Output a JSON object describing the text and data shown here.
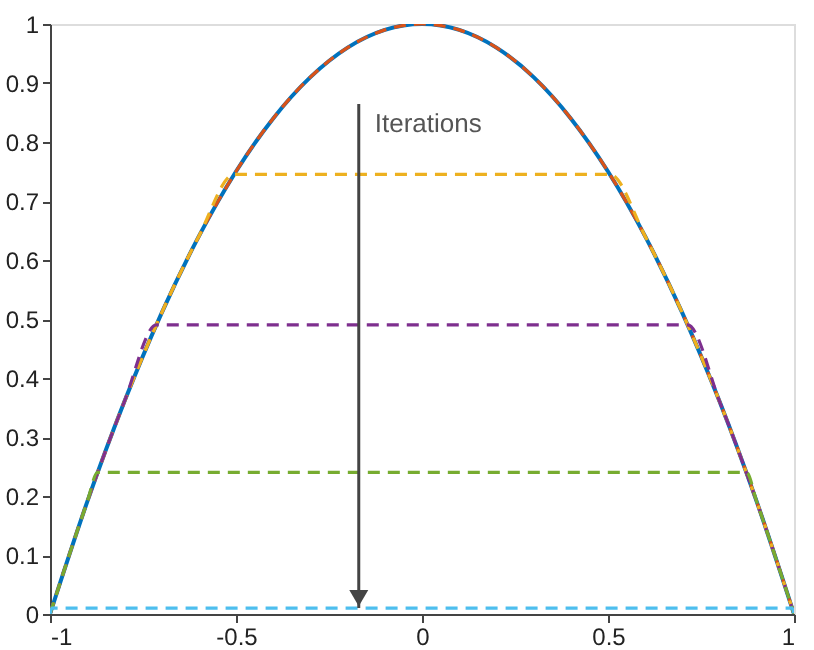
{
  "chart_data": {
    "type": "line",
    "xlim": [
      -1,
      1
    ],
    "xticks": [
      -1,
      -0.5,
      0,
      0.5,
      1
    ],
    "ylim": [
      0,
      1
    ],
    "yticks": [
      0,
      0.1,
      0.2,
      0.3,
      0.4,
      0.5,
      0.6,
      0.7,
      0.8,
      0.9,
      1
    ],
    "grid": false,
    "marker": "none",
    "annotations": [
      {
        "text": "Iterations",
        "x": -0.17,
        "y": 0.01
      }
    ],
    "series": [
      {
        "color": "#0072bd",
        "line_style": "solid",
        "x": [
          -1,
          -0.9,
          -0.8,
          -0.7,
          -0.6,
          -0.5,
          -0.4,
          -0.3,
          -0.2,
          -0.1,
          0,
          0.1,
          0.2,
          0.3,
          0.4,
          0.5,
          0.6,
          0.7,
          0.8,
          0.9,
          1
        ],
        "values": [
          0,
          0.19,
          0.36,
          0.51,
          0.64,
          0.75,
          0.84,
          0.91,
          0.96,
          0.99,
          1,
          0.99,
          0.96,
          0.91,
          0.84,
          0.75,
          0.64,
          0.51,
          0.36,
          0.19,
          0
        ]
      },
      {
        "color": "#d95319",
        "line_style": "dashed",
        "x": [
          -1,
          -0.9,
          -0.8,
          -0.7,
          -0.6,
          -0.5,
          -0.4,
          -0.3,
          -0.2,
          -0.1,
          0,
          0.1,
          0.2,
          0.3,
          0.4,
          0.5,
          0.6,
          0.7,
          0.8,
          0.9,
          1
        ],
        "values": [
          0,
          0.19,
          0.36,
          0.51,
          0.64,
          0.75,
          0.84,
          0.91,
          0.96,
          0.99,
          1,
          0.99,
          0.96,
          0.91,
          0.84,
          0.75,
          0.64,
          0.51,
          0.36,
          0.19,
          0
        ]
      },
      {
        "color": "#edb120",
        "line_style": "dashed",
        "x": [
          -1,
          -0.9,
          -0.8,
          -0.7,
          -0.6,
          -0.505,
          0.505,
          0.6,
          0.7,
          0.8,
          0.9,
          1
        ],
        "values": [
          0,
          0.19,
          0.36,
          0.51,
          0.64,
          0.745,
          0.745,
          0.64,
          0.51,
          0.36,
          0.19,
          0
        ]
      },
      {
        "color": "#7e2f8e",
        "line_style": "dashed",
        "x": [
          -1,
          -0.9,
          -0.8,
          -0.714,
          0.714,
          0.8,
          0.9,
          1
        ],
        "values": [
          0,
          0.19,
          0.36,
          0.49,
          0.49,
          0.36,
          0.19,
          0
        ]
      },
      {
        "color": "#77ac30",
        "line_style": "dashed",
        "x": [
          -1,
          -0.9,
          -0.872,
          0.872,
          0.9,
          1
        ],
        "values": [
          0,
          0.19,
          0.24,
          0.24,
          0.19,
          0
        ]
      },
      {
        "color": "#4dbeee",
        "line_style": "dashed",
        "x": [
          -1,
          -0.995,
          0.995,
          1
        ],
        "values": [
          0,
          0.01,
          0.01,
          0
        ]
      }
    ]
  }
}
